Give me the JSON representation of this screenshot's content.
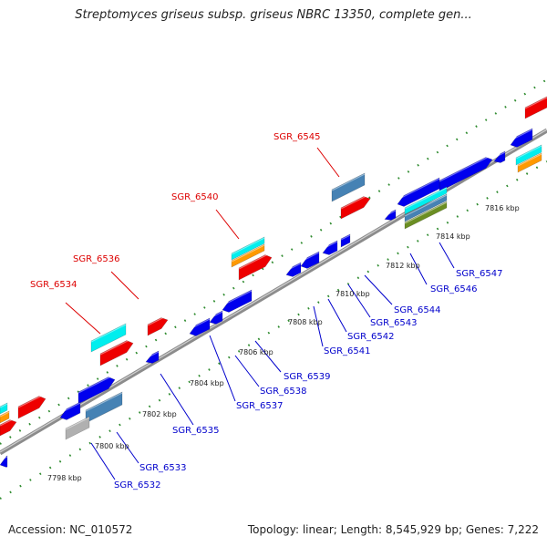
{
  "title": "Streptomyces griseus subsp. griseus NBRC 13350, complete gen...",
  "footer": {
    "accession": "Accession: NC_010572",
    "summary": "Topology: linear; Length: 8,545,929 bp; Genes: 7,222"
  },
  "colors": {
    "backbone": "#8c8c8c",
    "ruler_tick": "#2e8b2e",
    "forward_label": "#dd0000",
    "reverse_label": "#0000cc",
    "feature_red": "#ee0000",
    "feature_blue": "#0000ee",
    "feature_cyan": "#00eeee",
    "feature_orange": "#ff9900",
    "feature_steelblue": "#4682b4",
    "feature_olive": "#6b8e23",
    "feature_gray": "#b0b0b0"
  },
  "kbp_labels": [
    "7798 kbp",
    "7800 kbp",
    "7802 kbp",
    "7804 kbp",
    "7806 kbp",
    "7808 kbp",
    "7810 kbp",
    "7812 kbp",
    "7814 kbp",
    "7816 kbp"
  ],
  "forward_gene_labels": [
    "SGR_6534",
    "SGR_6536",
    "SGR_6540",
    "SGR_6545"
  ],
  "reverse_gene_labels": [
    "SGR_6532",
    "SGR_6533",
    "SGR_6535",
    "SGR_6537",
    "SGR_6538",
    "SGR_6539",
    "SGR_6541",
    "SGR_6542",
    "SGR_6543",
    "SGR_6544",
    "SGR_6546",
    "SGR_6547"
  ]
}
